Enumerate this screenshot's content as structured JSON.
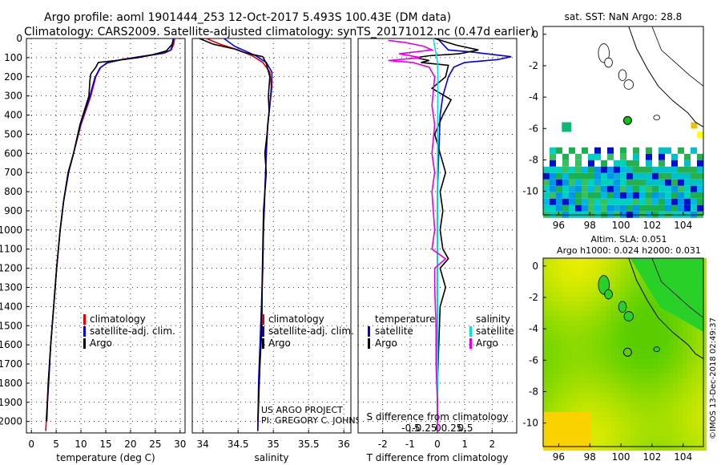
{
  "title": {
    "line1": "Argo profile: aoml 1901444_253 12-Oct-2017 5.493S 100.43E (DM data)",
    "line2": "Climatology: CARS2009. Satellite-adjusted climatology: synTS_20171012.nc (0.47d earlier)"
  },
  "credit": {
    "line1": "US ARGO PROJECT",
    "line2": "PI: GREGORY C. JOHNSON"
  },
  "side_stamp": "©IMOS 13-Dec-2018 02:49:37",
  "colors": {
    "climatology": "#e00000",
    "satellite": "#0000e0",
    "argo": "#000000",
    "salinity_sat": "#00e0e0",
    "salinity_argo": "#e000e0"
  },
  "chart_data": [
    {
      "type": "line",
      "name": "temperature-profile",
      "xlabel": "temperature (deg C)",
      "ylabel": "",
      "xlim": [
        -1,
        31
      ],
      "ylim": [
        2060,
        0
      ],
      "xticks": [
        0,
        5,
        10,
        15,
        20,
        25,
        30
      ],
      "yticks": [
        0,
        100,
        200,
        300,
        400,
        500,
        600,
        700,
        800,
        900,
        1000,
        1100,
        1200,
        1300,
        1400,
        1500,
        1600,
        1700,
        1800,
        1900,
        2000
      ],
      "legend": [
        "climatology",
        "satellite-adj. clim.",
        "Argo"
      ],
      "legend_position": "bottom-left",
      "series": [
        {
          "name": "climatology",
          "color": "#e00000",
          "points": [
            [
              28.9,
              0
            ],
            [
              28.7,
              30
            ],
            [
              28.2,
              60
            ],
            [
              27,
              75
            ],
            [
              23,
              90
            ],
            [
              18.5,
              108
            ],
            [
              15.5,
              125
            ],
            [
              14,
              150
            ],
            [
              13,
              200
            ],
            [
              12,
              300
            ],
            [
              10,
              450
            ],
            [
              8.5,
              600
            ],
            [
              7.5,
              700
            ],
            [
              6.5,
              850
            ],
            [
              5.8,
              1000
            ],
            [
              5.1,
              1200
            ],
            [
              4.5,
              1400
            ],
            [
              3.9,
              1600
            ],
            [
              3.4,
              1800
            ],
            [
              3.1,
              1950
            ],
            [
              2.9,
              2050
            ]
          ]
        },
        {
          "name": "satellite-adj. clim.",
          "color": "#0000e0",
          "points": [
            [
              28.6,
              0
            ],
            [
              28.5,
              30
            ],
            [
              28.1,
              60
            ],
            [
              26.5,
              78
            ],
            [
              22,
              95
            ],
            [
              18,
              112
            ],
            [
              15.2,
              128
            ],
            [
              13.8,
              155
            ],
            [
              12.8,
              205
            ],
            [
              11.8,
              300
            ],
            [
              9.9,
              450
            ],
            [
              8.5,
              600
            ],
            [
              7.5,
              700
            ],
            [
              6.5,
              850
            ],
            [
              5.8,
              1000
            ],
            [
              5.1,
              1200
            ],
            [
              4.5,
              1400
            ],
            [
              3.9,
              1600
            ],
            [
              3.5,
              1800
            ],
            [
              3.1,
              1950
            ],
            [
              3,
              2000
            ]
          ]
        },
        {
          "name": "Argo",
          "color": "#000000",
          "points": [
            [
              28.6,
              5
            ],
            [
              28.4,
              30
            ],
            [
              27.2,
              65
            ],
            [
              24.5,
              85
            ],
            [
              21.5,
              100
            ],
            [
              17,
              115
            ],
            [
              13.5,
              125
            ],
            [
              13,
              150
            ],
            [
              12,
              185
            ],
            [
              11.8,
              220
            ],
            [
              11.6,
              300
            ],
            [
              9.8,
              450
            ],
            [
              8.5,
              600
            ],
            [
              7.4,
              700
            ],
            [
              6.5,
              850
            ],
            [
              5.8,
              1000
            ],
            [
              5.1,
              1200
            ],
            [
              4.5,
              1400
            ],
            [
              3.9,
              1600
            ],
            [
              3.4,
              1800
            ],
            [
              3.1,
              2000
            ]
          ]
        }
      ]
    },
    {
      "type": "line",
      "name": "salinity-profile",
      "xlabel": "salinity",
      "xlim": [
        33.85,
        36.1
      ],
      "ylim": [
        2060,
        0
      ],
      "xticks": [
        34,
        34.5,
        35,
        35.5,
        36
      ],
      "xticklabels": [
        "34",
        "34.5",
        "35",
        "35.5",
        "36"
      ],
      "legend": [
        "climatology",
        "satellite-adj. clim.",
        "Argo"
      ],
      "legend_position": "bottom-left",
      "series": [
        {
          "name": "climatology",
          "color": "#e00000",
          "points": [
            [
              34.05,
              0
            ],
            [
              34.25,
              30
            ],
            [
              34.5,
              60
            ],
            [
              34.7,
              90
            ],
            [
              34.85,
              125
            ],
            [
              34.95,
              175
            ],
            [
              34.97,
              250
            ],
            [
              34.95,
              350
            ],
            [
              34.92,
              450
            ],
            [
              34.9,
              600
            ],
            [
              34.88,
              800
            ],
            [
              34.86,
              1000
            ],
            [
              34.85,
              1200
            ],
            [
              34.83,
              1500
            ],
            [
              34.8,
              1800
            ],
            [
              34.78,
              2050
            ]
          ]
        },
        {
          "name": "satellite-adj. clim.",
          "color": "#0000e0",
          "points": [
            [
              34.3,
              0
            ],
            [
              34.45,
              40
            ],
            [
              34.75,
              90
            ],
            [
              34.9,
              125
            ],
            [
              34.98,
              175
            ],
            [
              34.98,
              250
            ],
            [
              34.95,
              350
            ],
            [
              34.92,
              450
            ],
            [
              34.9,
              600
            ],
            [
              34.88,
              800
            ],
            [
              34.86,
              1000
            ],
            [
              34.85,
              1200
            ],
            [
              34.82,
              1500
            ],
            [
              34.79,
              1800
            ],
            [
              34.78,
              2050
            ]
          ]
        },
        {
          "name": "Argo",
          "color": "#000000",
          "points": [
            [
              33.95,
              0
            ],
            [
              34.15,
              30
            ],
            [
              34.45,
              55
            ],
            [
              34.6,
              75
            ],
            [
              34.85,
              95
            ],
            [
              34.9,
              130
            ],
            [
              34.95,
              200
            ],
            [
              34.93,
              300
            ],
            [
              34.94,
              380
            ],
            [
              34.91,
              500
            ],
            [
              34.88,
              600
            ],
            [
              34.9,
              700
            ],
            [
              34.86,
              900
            ],
            [
              34.85,
              1100
            ],
            [
              34.84,
              1300
            ],
            [
              34.84,
              1500
            ],
            [
              34.81,
              1700
            ],
            [
              34.78,
              2000
            ]
          ]
        }
      ]
    },
    {
      "type": "line",
      "name": "difference-profile",
      "xlabel": "T difference from climatology",
      "xlim": [
        -2.9,
        2.9
      ],
      "ylim": [
        2060,
        0
      ],
      "xticks": [
        -2,
        -1,
        0,
        1,
        2
      ],
      "xticklabels": [
        "-2",
        "-1",
        "0",
        "1",
        "2"
      ],
      "secondary_axis_label": "S difference from climatology",
      "secondary_xticks": [
        -0.5,
        -0.25,
        0,
        0.25,
        0.5
      ],
      "secondary_xticklabels": [
        "-0.5",
        "-0.25",
        "0",
        "0.25",
        "0.5"
      ],
      "legend_left_title": "temperature",
      "legend_right_title": "salinity",
      "legend_left": [
        "satellite",
        "Argo"
      ],
      "legend_right": [
        "satellite",
        "Argo"
      ],
      "series": [
        {
          "name": "temperature satellite",
          "color": "#0000e0",
          "points": [
            [
              0,
              0
            ],
            [
              0.2,
              30
            ],
            [
              0.4,
              60
            ],
            [
              1.2,
              70
            ],
            [
              2.7,
              95
            ],
            [
              2.2,
              110
            ],
            [
              1,
              125
            ],
            [
              0.6,
              150
            ],
            [
              0.4,
              200
            ],
            [
              0.2,
              300
            ],
            [
              0.1,
              400
            ],
            [
              0.05,
              600
            ],
            [
              0,
              800
            ],
            [
              0,
              1200
            ],
            [
              0,
              1600
            ],
            [
              0,
              2000
            ]
          ]
        },
        {
          "name": "temperature Argo",
          "color": "#000000",
          "points": [
            [
              -0.1,
              0
            ],
            [
              0.7,
              35
            ],
            [
              1.5,
              60
            ],
            [
              0.8,
              80
            ],
            [
              -0.3,
              90
            ],
            [
              -0.8,
              100
            ],
            [
              -0.3,
              115
            ],
            [
              -0.6,
              125
            ],
            [
              0.4,
              140
            ],
            [
              0.3,
              200
            ],
            [
              -0.2,
              260
            ],
            [
              0.5,
              320
            ],
            [
              0.2,
              400
            ],
            [
              -0.1,
              500
            ],
            [
              0.1,
              600
            ],
            [
              0.3,
              700
            ],
            [
              0.1,
              800
            ],
            [
              0.2,
              900
            ],
            [
              0.1,
              1000
            ],
            [
              0.2,
              1100
            ],
            [
              0.4,
              1150
            ],
            [
              0.1,
              1200
            ],
            [
              0.3,
              1300
            ],
            [
              0.1,
              1400
            ],
            [
              0.05,
              1600
            ],
            [
              0,
              1800
            ],
            [
              0,
              2000
            ]
          ]
        },
        {
          "name": "salinity satellite",
          "color": "#00e0e0",
          "points": [
            [
              -0.15,
              0
            ],
            [
              -0.1,
              40
            ],
            [
              -0.05,
              80
            ],
            [
              0,
              120
            ],
            [
              0.02,
              200
            ],
            [
              0.01,
              400
            ],
            [
              0,
              800
            ],
            [
              0,
              1200
            ],
            [
              0.01,
              1600
            ],
            [
              0,
              2000
            ]
          ]
        },
        {
          "name": "salinity Argo",
          "color": "#e000e0",
          "points": [
            [
              -1.8,
              10
            ],
            [
              -1.2,
              20
            ],
            [
              -0.5,
              40
            ],
            [
              -0.2,
              60
            ],
            [
              -1.4,
              80
            ],
            [
              -0.6,
              100
            ],
            [
              -1.8,
              115
            ],
            [
              -0.9,
              125
            ],
            [
              -0.3,
              150
            ],
            [
              -0.1,
              200
            ],
            [
              -0.2,
              350
            ],
            [
              -0.1,
              450
            ],
            [
              -0.2,
              600
            ],
            [
              -0.1,
              700
            ],
            [
              -0.2,
              800
            ],
            [
              -0.1,
              1000
            ],
            [
              -0.2,
              1100
            ],
            [
              0.3,
              1150
            ],
            [
              -0.1,
              1200
            ],
            [
              -0.1,
              1300
            ],
            [
              -0.05,
              1500
            ],
            [
              -0.05,
              1700
            ],
            [
              0,
              1900
            ],
            [
              0,
              2050
            ]
          ]
        }
      ]
    },
    {
      "type": "heatmap",
      "name": "sst-map",
      "title": "sat. SST: NaN Argo: 28.8",
      "xlim": [
        95,
        105.3
      ],
      "ylim": [
        -11.5,
        0.5
      ],
      "xticks": [
        96,
        98,
        100,
        102,
        104
      ],
      "yticks": [
        0,
        -2,
        -4,
        -6,
        -8,
        -10
      ],
      "argo_position": [
        100.43,
        -5.49
      ]
    },
    {
      "type": "heatmap",
      "name": "sla-map",
      "title_line1": "Altim. SLA: 0.051",
      "title_line2": "Argo h1000: 0.024 h2000: 0.031",
      "xlim": [
        95,
        105.3
      ],
      "ylim": [
        -11.5,
        0.5
      ],
      "xticks": [
        96,
        98,
        100,
        102,
        104
      ],
      "yticks": [
        0,
        -2,
        -4,
        -6,
        -8,
        -10
      ],
      "argo_position": [
        100.43,
        -5.49
      ]
    }
  ]
}
